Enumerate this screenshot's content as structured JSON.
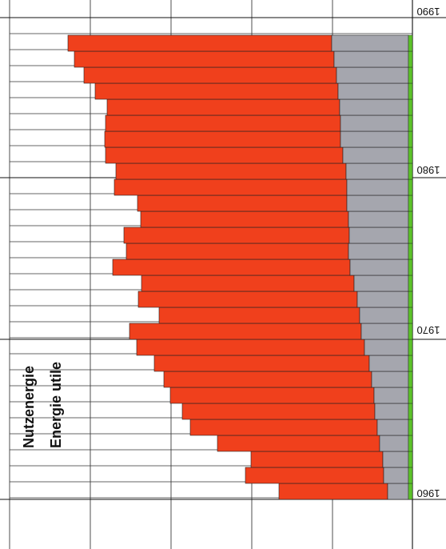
{
  "chart_data": {
    "type": "bar",
    "orientation": "horizontal-stacked",
    "title_lines": [
      "Nutzenergie",
      "Energie utile"
    ],
    "year_tick_labels": [
      "1960",
      "1970",
      "1980",
      "1990"
    ],
    "series": [
      {
        "name": "",
        "color": "#f0401c"
      },
      {
        "name": "",
        "color": "#a5a6ae"
      },
      {
        "name": "",
        "color": "#5cc22a"
      }
    ],
    "x": [
      1960,
      1961,
      1962,
      1963,
      1964,
      1965,
      1966,
      1967,
      1968,
      1969,
      1970,
      1971,
      1972,
      1973,
      1974,
      1975,
      1976,
      1977,
      1978,
      1979,
      1980,
      1981,
      1982,
      1983,
      1984,
      1985,
      1986,
      1987,
      1988
    ],
    "series_values": {
      "orange": [
        136,
        173,
        165,
        203,
        234,
        241,
        255,
        260,
        269,
        285,
        290,
        251,
        274,
        266,
        297,
        278,
        282,
        260,
        262,
        291,
        288,
        297,
        295,
        294,
        291,
        304,
        316,
        325,
        330
      ],
      "gray": [
        26,
        31,
        32,
        36,
        39,
        42,
        43,
        46,
        49,
        55,
        59,
        61,
        64,
        68,
        73,
        75,
        74,
        75,
        77,
        77,
        78,
        82,
        85,
        85,
        86,
        88,
        90,
        93,
        96
      ],
      "green": [
        5,
        5,
        5,
        5,
        5,
        5,
        5,
        5,
        5,
        5,
        5,
        5,
        5,
        5,
        5,
        5,
        5,
        5,
        5,
        5,
        5,
        5,
        5,
        5,
        5,
        5,
        5,
        5,
        5
      ]
    }
  }
}
